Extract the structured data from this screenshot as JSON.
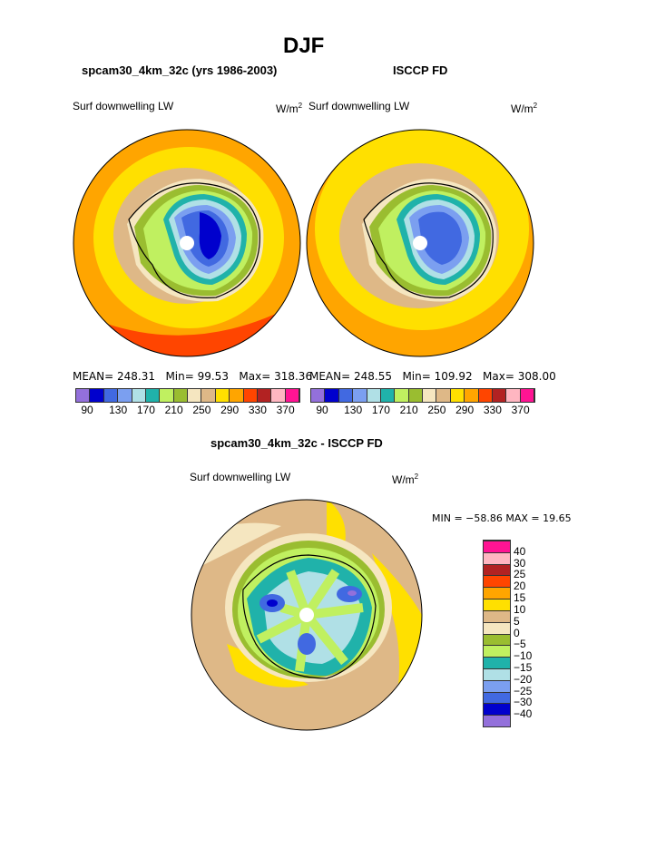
{
  "title": "DJF",
  "panels": [
    {
      "heading": "spcam30_4km_32c (yrs 1986-2003)",
      "label": "Surf downwelling LW",
      "units": "W/m",
      "units_sup": "2",
      "stats": {
        "mean": "MEAN= 248.31",
        "min": "Min=  99.53",
        "max": "Max= 318.36"
      }
    },
    {
      "heading": "ISCCP FD",
      "label": "Surf downwelling LW",
      "units": "W/m",
      "units_sup": "2",
      "stats": {
        "mean": "MEAN= 248.55",
        "min": "Min= 109.92",
        "max": "Max= 308.00"
      }
    }
  ],
  "diff": {
    "heading": "spcam30_4km_32c - ISCCP FD",
    "label": "Surf downwelling LW",
    "units": "W/m",
    "units_sup": "2",
    "stats": "MIN = −58.86 MAX =   19.65"
  },
  "chart_data": [
    {
      "type": "heatmap",
      "title": "spcam30_4km_32c (yrs 1986-2003)",
      "projection": "south polar stereographic",
      "levels": [
        90,
        110,
        130,
        150,
        170,
        190,
        210,
        230,
        250,
        270,
        290,
        310,
        330,
        350,
        370
      ],
      "tick_labels": [
        "90",
        "130",
        "170",
        "210",
        "250",
        "290",
        "330",
        "370"
      ],
      "colors": [
        "#9370db",
        "#0000cd",
        "#4169e1",
        "#7b9ff0",
        "#b0e0e6",
        "#20b2aa",
        "#c0f060",
        "#9abd30",
        "#f5e6c0",
        "#deb887",
        "#ffe000",
        "#ffa500",
        "#ff4500",
        "#b22222",
        "#ffb6c1",
        "#ff1493"
      ],
      "mean": 248.31,
      "min": 99.53,
      "max": 318.36
    },
    {
      "type": "heatmap",
      "title": "ISCCP FD",
      "projection": "south polar stereographic",
      "levels": [
        90,
        110,
        130,
        150,
        170,
        190,
        210,
        230,
        250,
        270,
        290,
        310,
        330,
        350,
        370
      ],
      "tick_labels": [
        "90",
        "130",
        "170",
        "210",
        "250",
        "290",
        "330",
        "370"
      ],
      "colors": [
        "#9370db",
        "#0000cd",
        "#4169e1",
        "#7b9ff0",
        "#b0e0e6",
        "#20b2aa",
        "#c0f060",
        "#9abd30",
        "#f5e6c0",
        "#deb887",
        "#ffe000",
        "#ffa500",
        "#ff4500",
        "#b22222",
        "#ffb6c1",
        "#ff1493"
      ],
      "mean": 248.55,
      "min": 109.92,
      "max": 308.0
    },
    {
      "type": "heatmap",
      "title": "spcam30_4km_32c - ISCCP FD",
      "projection": "south polar stereographic",
      "levels": [
        -40,
        -30,
        -25,
        -20,
        -15,
        -10,
        -5,
        0,
        5,
        10,
        15,
        20,
        25,
        30,
        40
      ],
      "tick_labels": [
        "−40",
        "−30",
        "−25",
        "−20",
        "−15",
        "−10",
        "−5",
        "0",
        "5",
        "10",
        "15",
        "20",
        "25",
        "30",
        "40"
      ],
      "colors": [
        "#9370db",
        "#0000cd",
        "#4169e1",
        "#7b9ff0",
        "#b0e0e6",
        "#20b2aa",
        "#c0f060",
        "#9abd30",
        "#f5e6c0",
        "#deb887",
        "#ffe000",
        "#ffa500",
        "#ff4500",
        "#b22222",
        "#ffb6c1",
        "#ff1493"
      ],
      "min": -58.86,
      "max": 19.65
    }
  ]
}
